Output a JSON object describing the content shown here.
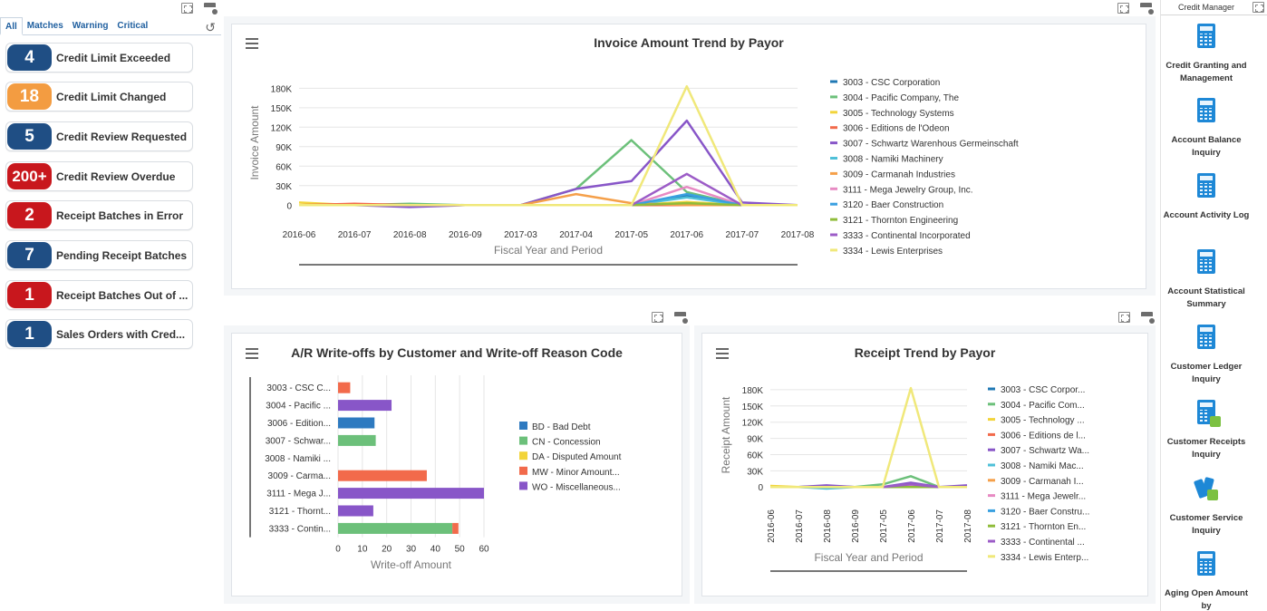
{
  "watchlist": {
    "tabs": [
      "All",
      "Matches",
      "Warning",
      "Critical"
    ],
    "items": [
      {
        "count": "4",
        "label": "Credit Limit Exceeded",
        "color": "#1f4e84"
      },
      {
        "count": "18",
        "label": "Credit Limit Changed",
        "color": "#f39c41"
      },
      {
        "count": "5",
        "label": "Credit Review Requested",
        "color": "#1f4e84"
      },
      {
        "count": "200+",
        "label": "Credit Review Overdue",
        "color": "#c8171d"
      },
      {
        "count": "2",
        "label": "Receipt Batches in Error",
        "color": "#c8171d"
      },
      {
        "count": "7",
        "label": "Pending Receipt Batches",
        "color": "#1f4e84"
      },
      {
        "count": "1",
        "label": "Receipt Batches Out of ...",
        "color": "#c8171d"
      },
      {
        "count": "1",
        "label": "Sales Orders with Cred...",
        "color": "#1f4e84"
      }
    ]
  },
  "invoice_chart": {
    "title": "Invoice Amount Trend by Payor",
    "xlabel": "Fiscal Year and Period",
    "ylabel": "Invoice Amount",
    "yticks": [
      "0",
      "30K",
      "60K",
      "90K",
      "120K",
      "150K",
      "180K"
    ]
  },
  "writeoff_chart": {
    "title": "A/R Write-offs by Customer and Write-off Reason Code",
    "xlabel": "Write-off Amount",
    "xticks": [
      "0",
      "10",
      "20",
      "30",
      "40",
      "50",
      "60"
    ]
  },
  "receipt_chart": {
    "title": "Receipt Trend by Payor",
    "xlabel": "Fiscal Year and Period",
    "ylabel": "Receipt Amount",
    "yticks": [
      "0",
      "30K",
      "60K",
      "90K",
      "120K",
      "150K",
      "180K"
    ]
  },
  "springboard": {
    "title": "Credit Manager",
    "apps": [
      {
        "label": "Credit Granting and Management",
        "icon": "calculator-icon"
      },
      {
        "label": "Account Balance Inquiry",
        "icon": "calculator-icon"
      },
      {
        "label": "Account Activity Log",
        "icon": "calculator-icon"
      },
      {
        "label": "Account Statistical Summary",
        "icon": "calculator-icon"
      },
      {
        "label": "Customer Ledger Inquiry",
        "icon": "calculator-icon"
      },
      {
        "label": "Customer Receipts Inquiry",
        "icon": "calculator-green-icon"
      },
      {
        "label": "Customer Service Inquiry",
        "icon": "phone-icon"
      },
      {
        "label": "Aging Open Amount by",
        "icon": "calculator-icon"
      }
    ]
  },
  "chart_data": [
    {
      "type": "line",
      "title": "Invoice Amount Trend by Payor",
      "xlabel": "Fiscal Year and Period",
      "ylabel": "Invoice Amount",
      "x": [
        "2016-06",
        "2016-07",
        "2016-08",
        "2016-09",
        "2017-03",
        "2017-04",
        "2017-05",
        "2017-06",
        "2017-07",
        "2017-08"
      ],
      "ylim": [
        -8000,
        200000
      ],
      "legend": "right",
      "series": [
        {
          "name": "3003 - CSC Corporation",
          "color": "#1f78b4",
          "values": [
            0,
            0,
            0,
            0,
            0,
            0,
            0,
            15000,
            0,
            0
          ]
        },
        {
          "name": "3004 - Pacific Company, The",
          "color": "#6cc07a",
          "values": [
            0,
            0,
            2000,
            0,
            0,
            25000,
            100000,
            20000,
            0,
            0
          ]
        },
        {
          "name": "3005 - Technology Systems",
          "color": "#f2d43a",
          "values": [
            4000,
            0,
            0,
            0,
            0,
            0,
            0,
            5000,
            0,
            0
          ]
        },
        {
          "name": "3006 - Editions de l'Odeon",
          "color": "#f26a4b",
          "values": [
            0,
            2000,
            0,
            0,
            0,
            0,
            0,
            0,
            0,
            0
          ]
        },
        {
          "name": "3007 - Schwartz Warenhous Germeinschaft",
          "color": "#8856c8",
          "values": [
            0,
            0,
            -3000,
            0,
            0,
            25000,
            37000,
            130000,
            4000,
            0
          ]
        },
        {
          "name": "3008 - Namiki Machinery",
          "color": "#4fc0d8",
          "values": [
            0,
            0,
            0,
            0,
            0,
            0,
            0,
            12000,
            0,
            0
          ]
        },
        {
          "name": "3009 - Carmanah Industries",
          "color": "#f5a04a",
          "values": [
            0,
            0,
            0,
            0,
            0,
            17000,
            3000,
            0,
            0,
            0
          ]
        },
        {
          "name": "3111 - Mega Jewelry Group, Inc.",
          "color": "#e78ac3",
          "values": [
            0,
            0,
            0,
            0,
            0,
            0,
            0,
            28000,
            0,
            0
          ]
        },
        {
          "name": "3120 - Baer Construction",
          "color": "#3aa0e0",
          "values": [
            0,
            0,
            0,
            0,
            0,
            0,
            0,
            17000,
            0,
            0
          ]
        },
        {
          "name": "3121 - Thornton Engineering",
          "color": "#8fbc3a",
          "values": [
            0,
            0,
            0,
            0,
            0,
            0,
            0,
            3000,
            0,
            0
          ]
        },
        {
          "name": "3333 - Continental Incorporated",
          "color": "#9c5cc7",
          "values": [
            0,
            0,
            0,
            0,
            0,
            0,
            0,
            48000,
            0,
            0
          ]
        },
        {
          "name": "3334 - Lewis Enterprises",
          "color": "#f0e87a",
          "values": [
            0,
            0,
            0,
            0,
            0,
            0,
            0,
            183000,
            0,
            0
          ]
        }
      ]
    },
    {
      "type": "bar",
      "orientation": "horizontal",
      "stacked": true,
      "title": "A/R Write-offs by Customer and Write-off Reason Code",
      "xlabel": "Write-off Amount",
      "xlim": [
        0,
        60
      ],
      "legend": "right",
      "categories": [
        "3003 - CSC C...",
        "3004 - Pacific ...",
        "3006 - Edition...",
        "3007 - Schwar...",
        "3008 - Namiki ...",
        "3009 - Carma...",
        "3111 - Mega J...",
        "3121 - Thornt...",
        "3333 - Contin..."
      ],
      "series": [
        {
          "name": "BD - Bad Debt",
          "color": "#2e7ac0",
          "values": [
            0,
            0,
            15,
            0,
            0,
            0,
            0,
            0,
            0
          ]
        },
        {
          "name": "CN - Concession",
          "color": "#6cc07a",
          "values": [
            0,
            0,
            0,
            15.5,
            0,
            0,
            0,
            0,
            47
          ]
        },
        {
          "name": "DA - Disputed Amount",
          "color": "#f2d43a",
          "values": [
            0,
            0,
            0,
            0,
            0,
            0,
            0,
            0,
            0
          ]
        },
        {
          "name": "MW - Minor Amount...",
          "color": "#f26a4b",
          "values": [
            5,
            0,
            0,
            0,
            0,
            36.5,
            0,
            0,
            2.5
          ]
        },
        {
          "name": "WO - Miscellaneous...",
          "color": "#8856c8",
          "values": [
            0,
            22,
            0,
            0,
            0,
            0,
            60,
            14.5,
            0
          ]
        }
      ]
    },
    {
      "type": "line",
      "title": "Receipt Trend by Payor",
      "xlabel": "Fiscal Year and Period",
      "ylabel": "Receipt Amount",
      "x": [
        "2016-06",
        "2016-07",
        "2016-08",
        "2016-09",
        "2017-05",
        "2017-06",
        "2017-07",
        "2017-08"
      ],
      "ylim": [
        -8000,
        200000
      ],
      "legend": "right",
      "series": [
        {
          "name": "3003 - CSC Corpor...",
          "color": "#1f78b4",
          "values": [
            0,
            0,
            0,
            0,
            0,
            3000,
            0,
            0
          ]
        },
        {
          "name": "3004 - Pacific Com...",
          "color": "#6cc07a",
          "values": [
            0,
            0,
            2000,
            0,
            5000,
            20000,
            0,
            0
          ]
        },
        {
          "name": "3005 - Technology ...",
          "color": "#f2d43a",
          "values": [
            2000,
            0,
            0,
            0,
            0,
            0,
            0,
            0
          ]
        },
        {
          "name": "3006 - Editions de l...",
          "color": "#f26a4b",
          "values": [
            0,
            0,
            0,
            0,
            0,
            0,
            0,
            0
          ]
        },
        {
          "name": "3007 - Schwartz Wa...",
          "color": "#8856c8",
          "values": [
            0,
            0,
            3000,
            0,
            0,
            8000,
            0,
            3000
          ]
        },
        {
          "name": "3008 - Namiki Mac...",
          "color": "#4fc0d8",
          "values": [
            0,
            0,
            -3000,
            0,
            0,
            0,
            0,
            0
          ]
        },
        {
          "name": "3009 - Carmanah I...",
          "color": "#f5a04a",
          "values": [
            0,
            0,
            0,
            0,
            0,
            0,
            0,
            0
          ]
        },
        {
          "name": "3111 - Mega Jewelr...",
          "color": "#e78ac3",
          "values": [
            0,
            0,
            0,
            0,
            0,
            2000,
            0,
            0
          ]
        },
        {
          "name": "3120 - Baer Constru...",
          "color": "#3aa0e0",
          "values": [
            0,
            0,
            0,
            0,
            0,
            0,
            0,
            0
          ]
        },
        {
          "name": "3121 - Thornton En...",
          "color": "#8fbc3a",
          "values": [
            0,
            0,
            0,
            0,
            0,
            0,
            0,
            0
          ]
        },
        {
          "name": "3333 - Continental ...",
          "color": "#9c5cc7",
          "values": [
            0,
            0,
            0,
            0,
            0,
            5000,
            0,
            0
          ]
        },
        {
          "name": "3334 - Lewis Enterp...",
          "color": "#f0e87a",
          "values": [
            0,
            0,
            0,
            0,
            0,
            183000,
            0,
            0
          ]
        }
      ]
    }
  ]
}
